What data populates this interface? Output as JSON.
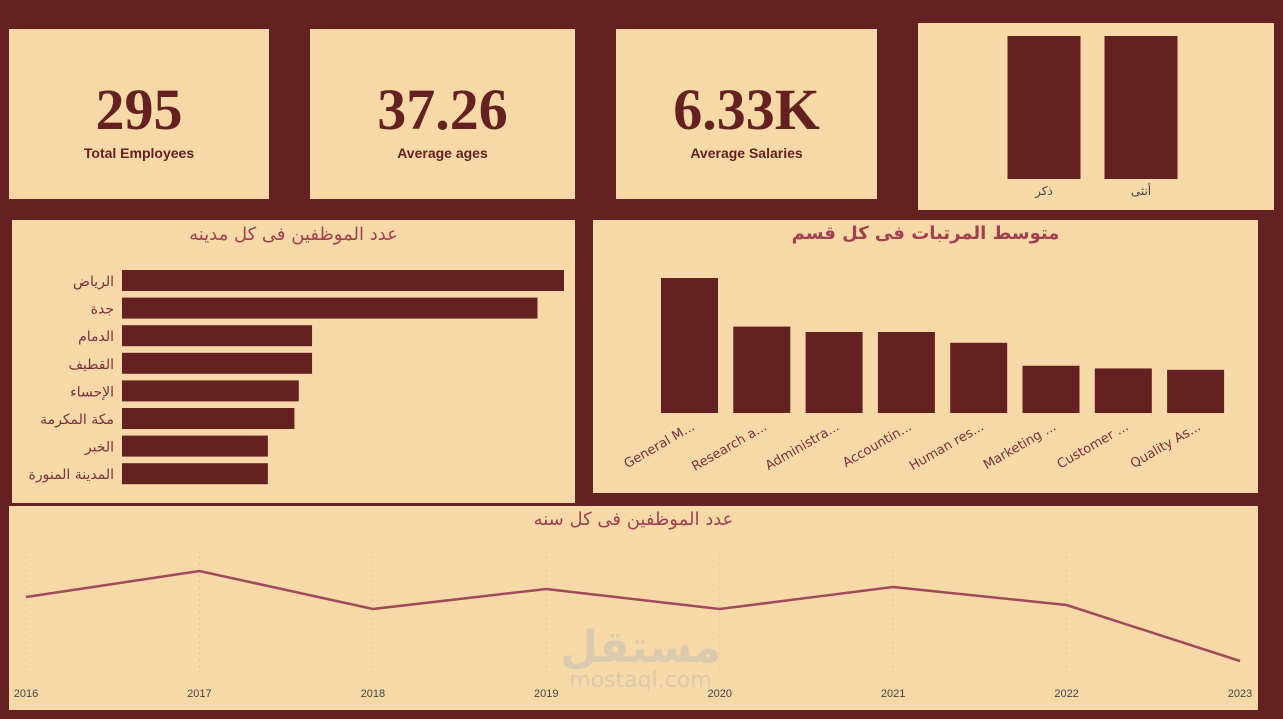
{
  "kpis": [
    {
      "value": "295",
      "label": "Total Employees"
    },
    {
      "value": "37.26",
      "label": "Average ages"
    },
    {
      "value": "6.33K",
      "label": "Average Salaries"
    }
  ],
  "colors": {
    "bar": "#652022",
    "line": "#a04a5a",
    "panel": "#f7d9a7",
    "background": "#652022"
  },
  "chart_data": [
    {
      "type": "bar",
      "title": "",
      "categories": [
        "ذكر",
        "أنثى"
      ],
      "values": [
        1,
        1
      ],
      "ylim": [
        0,
        1
      ]
    },
    {
      "type": "bar",
      "orientation": "horizontal",
      "title": "عدد الموظفين فى كل مدينه",
      "categories": [
        "الرياض",
        "جدة",
        "الدمام",
        "القطيف",
        "الإحساء",
        "مكة المكرمة",
        "الخبر",
        "المدينة المنورة"
      ],
      "values": [
        100,
        94,
        43,
        43,
        40,
        39,
        33,
        33
      ],
      "xlim": [
        0,
        100
      ]
    },
    {
      "type": "bar",
      "title": "متوسط المرتبات فى كل قسم",
      "categories": [
        "General M...",
        "Research a...",
        "Administra...",
        "Accountin...",
        "Human res...",
        "Marketing ...",
        "Customer ...",
        "Quality As..."
      ],
      "values": [
        100,
        64,
        60,
        60,
        52,
        35,
        33,
        32
      ],
      "ylim": [
        0,
        100
      ]
    },
    {
      "type": "line",
      "title": "عدد الموظفين فى كل سنه",
      "x": [
        "2016",
        "2017",
        "2018",
        "2019",
        "2020",
        "2021",
        "2022",
        "2023"
      ],
      "values": [
        47,
        60,
        41,
        51,
        41,
        52,
        43,
        15
      ],
      "ylim": [
        0,
        75
      ]
    }
  ],
  "watermark": {
    "line1": "مستقل",
    "line2": "mostaql.com"
  }
}
